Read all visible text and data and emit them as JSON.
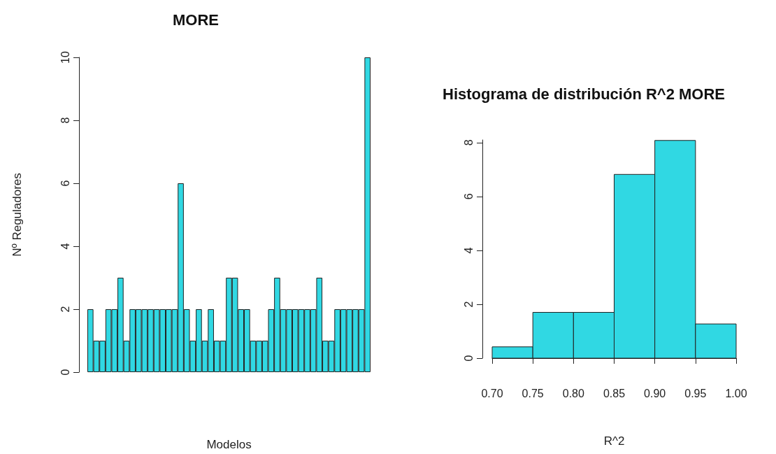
{
  "chart_data": [
    {
      "type": "bar",
      "title": "MORE",
      "xlabel": "Modelos",
      "ylabel": "Nº Reguladores",
      "color": "#30d8e3",
      "categories": [
        null,
        null,
        null,
        null,
        null,
        null,
        null,
        null,
        null,
        null,
        null,
        null,
        null,
        null,
        null,
        null,
        null,
        null,
        null,
        null,
        null,
        null,
        null,
        null,
        null,
        null,
        null,
        null,
        null,
        null,
        null,
        null,
        null,
        null,
        null,
        null,
        null,
        null,
        null,
        null,
        null,
        null,
        null,
        null,
        null,
        null,
        null
      ],
      "values": [
        2,
        1,
        1,
        2,
        2,
        3,
        1,
        2,
        2,
        2,
        2,
        2,
        2,
        2,
        2,
        6,
        2,
        1,
        2,
        1,
        2,
        1,
        1,
        3,
        3,
        2,
        2,
        1,
        1,
        1,
        2,
        3,
        2,
        2,
        2,
        2,
        2,
        2,
        3,
        1,
        1,
        2,
        2,
        2,
        2,
        2,
        10
      ],
      "ylim": [
        0,
        10
      ],
      "yticks": [
        0,
        2,
        4,
        6,
        8,
        10
      ]
    },
    {
      "type": "histogram",
      "title": "Histograma de distribución R^2 MORE",
      "xlabel": "R^2",
      "color": "#30d8e3",
      "bins": [
        0.7,
        0.75,
        0.8,
        0.85,
        0.9,
        0.95,
        1.0
      ],
      "values": [
        0.42,
        1.7,
        1.7,
        6.82,
        8.08,
        1.27
      ],
      "xlim": [
        0.7,
        1.0
      ],
      "xticks": [
        {
          "value": 0.7,
          "label": "0.70"
        },
        {
          "value": 0.75,
          "label": "0.75"
        },
        {
          "value": 0.8,
          "label": "0.80"
        },
        {
          "value": 0.85,
          "label": "0.85"
        },
        {
          "value": 0.9,
          "label": "0.90"
        },
        {
          "value": 0.95,
          "label": "0.95"
        },
        {
          "value": 1.0,
          "label": "1.00"
        }
      ],
      "ylim": [
        0,
        8.1
      ],
      "yticks": [
        0,
        2,
        4,
        6,
        8
      ]
    }
  ]
}
